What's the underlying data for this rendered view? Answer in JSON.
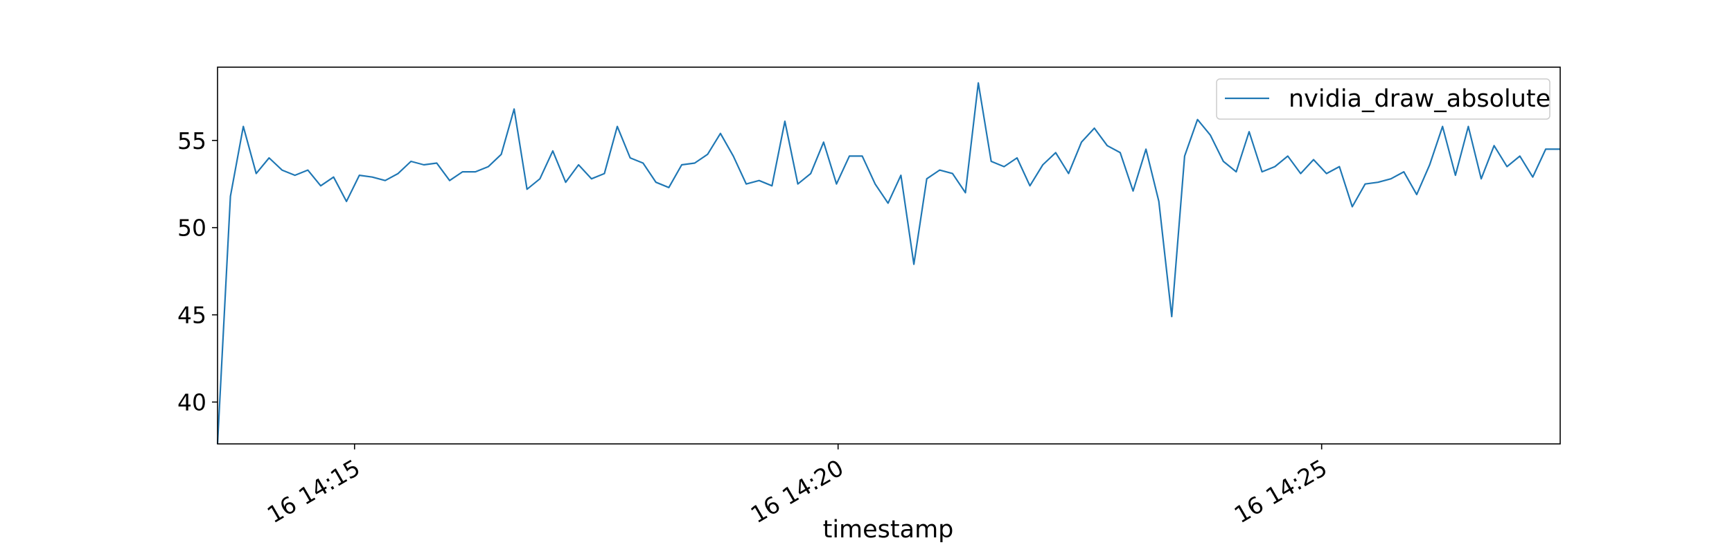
{
  "chart_data": {
    "type": "line",
    "title": "",
    "xlabel": "timestamp",
    "ylabel": "",
    "x_ticks": [
      "16 14:15",
      "16 14:20",
      "16 14:25"
    ],
    "y_ticks": [
      40,
      45,
      50,
      55
    ],
    "xlim": [
      "14:13:35",
      "14:27:28"
    ],
    "ylim": [
      37.6,
      59.2
    ],
    "grid": false,
    "legend_position": "top-right",
    "series": [
      {
        "name": "nvidia_draw_absolute",
        "color": "#1f77b4",
        "x": [
          "14:13:35",
          "14:13:43",
          "14:13:51",
          "14:13:59",
          "14:14:07",
          "14:14:15",
          "14:14:23",
          "14:14:31",
          "14:14:39",
          "14:14:47",
          "14:14:55",
          "14:15:03",
          "14:15:11",
          "14:15:19",
          "14:15:27",
          "14:15:35",
          "14:15:43",
          "14:15:51",
          "14:15:59",
          "14:16:07",
          "14:16:15",
          "14:16:23",
          "14:16:31",
          "14:16:39",
          "14:16:47",
          "14:16:55",
          "14:17:03",
          "14:17:11",
          "14:17:19",
          "14:17:27",
          "14:17:35",
          "14:17:43",
          "14:17:51",
          "14:17:59",
          "14:18:07",
          "14:18:15",
          "14:18:23",
          "14:18:31",
          "14:18:39",
          "14:18:47",
          "14:18:55",
          "14:19:03",
          "14:19:11",
          "14:19:19",
          "14:19:27",
          "14:19:35",
          "14:19:43",
          "14:19:51",
          "14:19:59",
          "14:20:07",
          "14:20:15",
          "14:20:23",
          "14:20:31",
          "14:20:39",
          "14:20:47",
          "14:20:55",
          "14:21:03",
          "14:21:11",
          "14:21:19",
          "14:21:27",
          "14:21:35",
          "14:21:43",
          "14:21:51",
          "14:21:59",
          "14:22:07",
          "14:22:15",
          "14:22:23",
          "14:22:31",
          "14:22:39",
          "14:22:47",
          "14:22:55",
          "14:23:03",
          "14:23:11",
          "14:23:19",
          "14:23:27",
          "14:23:35",
          "14:23:43",
          "14:23:51",
          "14:23:59",
          "14:24:07",
          "14:24:15",
          "14:24:23",
          "14:24:31",
          "14:24:39",
          "14:24:47",
          "14:24:55",
          "14:25:03",
          "14:25:11",
          "14:25:19",
          "14:25:27",
          "14:25:35",
          "14:25:43",
          "14:25:51",
          "14:25:59",
          "14:26:07",
          "14:26:15",
          "14:26:23",
          "14:26:31",
          "14:26:39",
          "14:26:47",
          "14:26:55",
          "14:27:03",
          "14:27:11",
          "14:27:19",
          "14:27:28"
        ],
        "values": [
          37.6,
          51.8,
          55.8,
          53.1,
          54.0,
          53.3,
          53.0,
          53.3,
          52.4,
          52.9,
          51.5,
          53.0,
          52.9,
          52.7,
          53.1,
          53.8,
          53.6,
          53.7,
          52.7,
          53.2,
          53.2,
          53.5,
          54.2,
          56.8,
          52.2,
          52.8,
          54.4,
          52.6,
          53.6,
          52.8,
          53.1,
          55.8,
          54.0,
          53.7,
          52.6,
          52.3,
          53.6,
          53.7,
          54.2,
          55.4,
          54.1,
          52.5,
          52.7,
          52.4,
          56.1,
          52.5,
          53.1,
          54.9,
          52.5,
          54.1,
          54.1,
          52.5,
          51.4,
          53.0,
          47.9,
          52.8,
          53.3,
          53.1,
          52.0,
          58.3,
          53.8,
          53.5,
          54.0,
          52.4,
          53.6,
          54.3,
          53.1,
          54.9,
          55.7,
          54.7,
          54.3,
          52.1,
          54.5,
          51.5,
          44.9,
          54.1,
          56.2,
          55.3,
          53.8,
          53.2,
          55.5,
          53.2,
          53.5,
          54.1,
          53.1,
          53.9,
          53.1,
          53.5,
          51.2,
          52.5,
          52.6,
          52.8,
          53.2,
          51.9,
          53.6,
          55.8,
          53.0,
          55.8,
          52.8,
          54.7,
          53.5,
          54.1,
          52.9,
          54.5,
          54.5
        ]
      }
    ]
  }
}
